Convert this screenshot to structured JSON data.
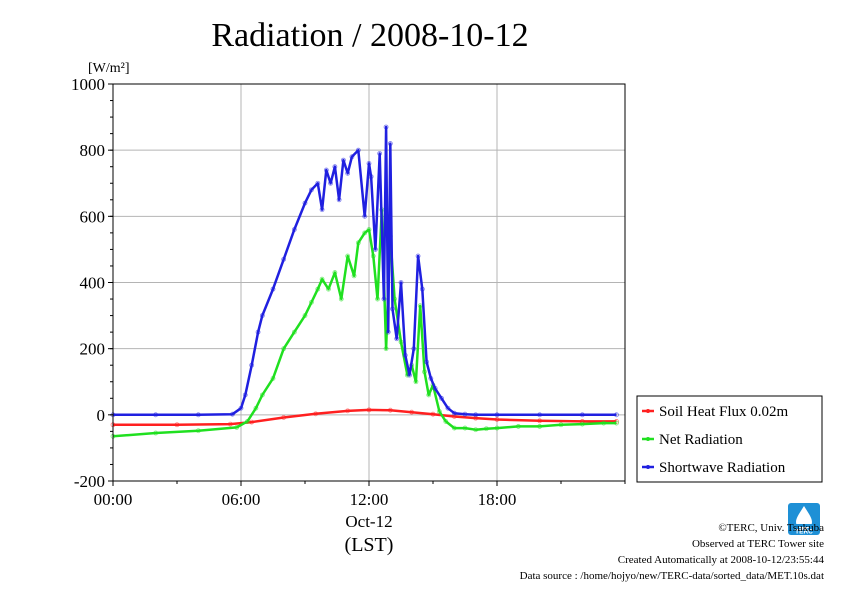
{
  "chart_data": {
    "type": "line",
    "title": "Radiation / 2008-10-12",
    "ylabel_unit": "[W/m²]",
    "xlabel_date": "Oct-12",
    "xlabel_tz": "(LST)",
    "x_ticks": [
      "00:00",
      "06:00",
      "12:00",
      "18:00"
    ],
    "x_tick_hours": [
      0,
      6,
      12,
      18
    ],
    "xlim_hours": [
      0,
      24
    ],
    "y_ticks": [
      1000,
      800,
      600,
      400,
      200,
      0,
      -200
    ],
    "ylim": [
      -200,
      1000
    ],
    "grid": true,
    "legend_position": "right, lower",
    "series": [
      {
        "name": "Soil Heat Flux 0.02m",
        "color": "#ff2020",
        "hours": [
          0,
          3,
          5.5,
          6.5,
          8,
          9.5,
          11,
          12,
          13,
          14,
          15,
          16,
          17,
          18,
          20,
          22,
          23.6
        ],
        "values": [
          -30,
          -30,
          -28,
          -22,
          -8,
          3,
          12,
          15,
          14,
          8,
          2,
          -5,
          -10,
          -14,
          -18,
          -20,
          -20
        ]
      },
      {
        "name": "Net Radiation",
        "color": "#20e020",
        "hours": [
          0,
          2,
          4,
          5.8,
          6.3,
          6.7,
          7,
          7.5,
          8,
          8.5,
          9,
          9.3,
          9.6,
          9.8,
          10.1,
          10.4,
          10.7,
          11,
          11.3,
          11.5,
          11.8,
          12,
          12.2,
          12.4,
          12.6,
          12.8,
          13,
          13.2,
          13.5,
          13.8,
          14,
          14.2,
          14.4,
          14.6,
          14.8,
          15,
          15.3,
          15.6,
          16,
          16.5,
          17,
          17.5,
          18,
          19,
          20,
          21,
          22,
          23,
          23.6
        ],
        "values": [
          -65,
          -55,
          -48,
          -38,
          -20,
          20,
          60,
          110,
          200,
          250,
          300,
          340,
          380,
          410,
          380,
          430,
          350,
          480,
          420,
          520,
          550,
          560,
          480,
          350,
          620,
          200,
          540,
          350,
          220,
          120,
          150,
          100,
          330,
          130,
          60,
          90,
          10,
          -20,
          -40,
          -40,
          -45,
          -42,
          -40,
          -35,
          -35,
          -30,
          -28,
          -25,
          -25
        ]
      },
      {
        "name": "Shortwave Radiation",
        "color": "#2020e0",
        "hours": [
          0,
          2,
          4,
          5.6,
          6,
          6.2,
          6.5,
          6.8,
          7,
          7.5,
          8,
          8.5,
          9,
          9.3,
          9.6,
          9.8,
          10,
          10.2,
          10.4,
          10.6,
          10.8,
          11,
          11.2,
          11.5,
          11.8,
          12,
          12.1,
          12.3,
          12.5,
          12.7,
          12.8,
          12.9,
          13,
          13.1,
          13.3,
          13.5,
          13.7,
          13.9,
          14.1,
          14.3,
          14.5,
          14.7,
          14.9,
          15.1,
          15.4,
          15.7,
          16,
          16.5,
          17,
          18,
          20,
          22,
          23.6
        ],
        "values": [
          0,
          0,
          0,
          2,
          20,
          60,
          150,
          250,
          300,
          380,
          470,
          560,
          640,
          680,
          700,
          620,
          740,
          700,
          750,
          650,
          770,
          730,
          780,
          800,
          600,
          760,
          720,
          500,
          790,
          350,
          870,
          250,
          820,
          320,
          230,
          400,
          180,
          120,
          200,
          480,
          380,
          160,
          110,
          80,
          50,
          20,
          5,
          2,
          0,
          0,
          0,
          0,
          0
        ]
      }
    ]
  },
  "credits": {
    "org": "©TERC, Univ. Tsukuba",
    "observed": "Observed at TERC Tower site",
    "created": "Created Automatically at 2008-10-12/23:55:44",
    "source": "Data source : /home/hojyo/new/TERC-data/sorted_data/MET.10s.dat",
    "logo_text": "TERC"
  }
}
